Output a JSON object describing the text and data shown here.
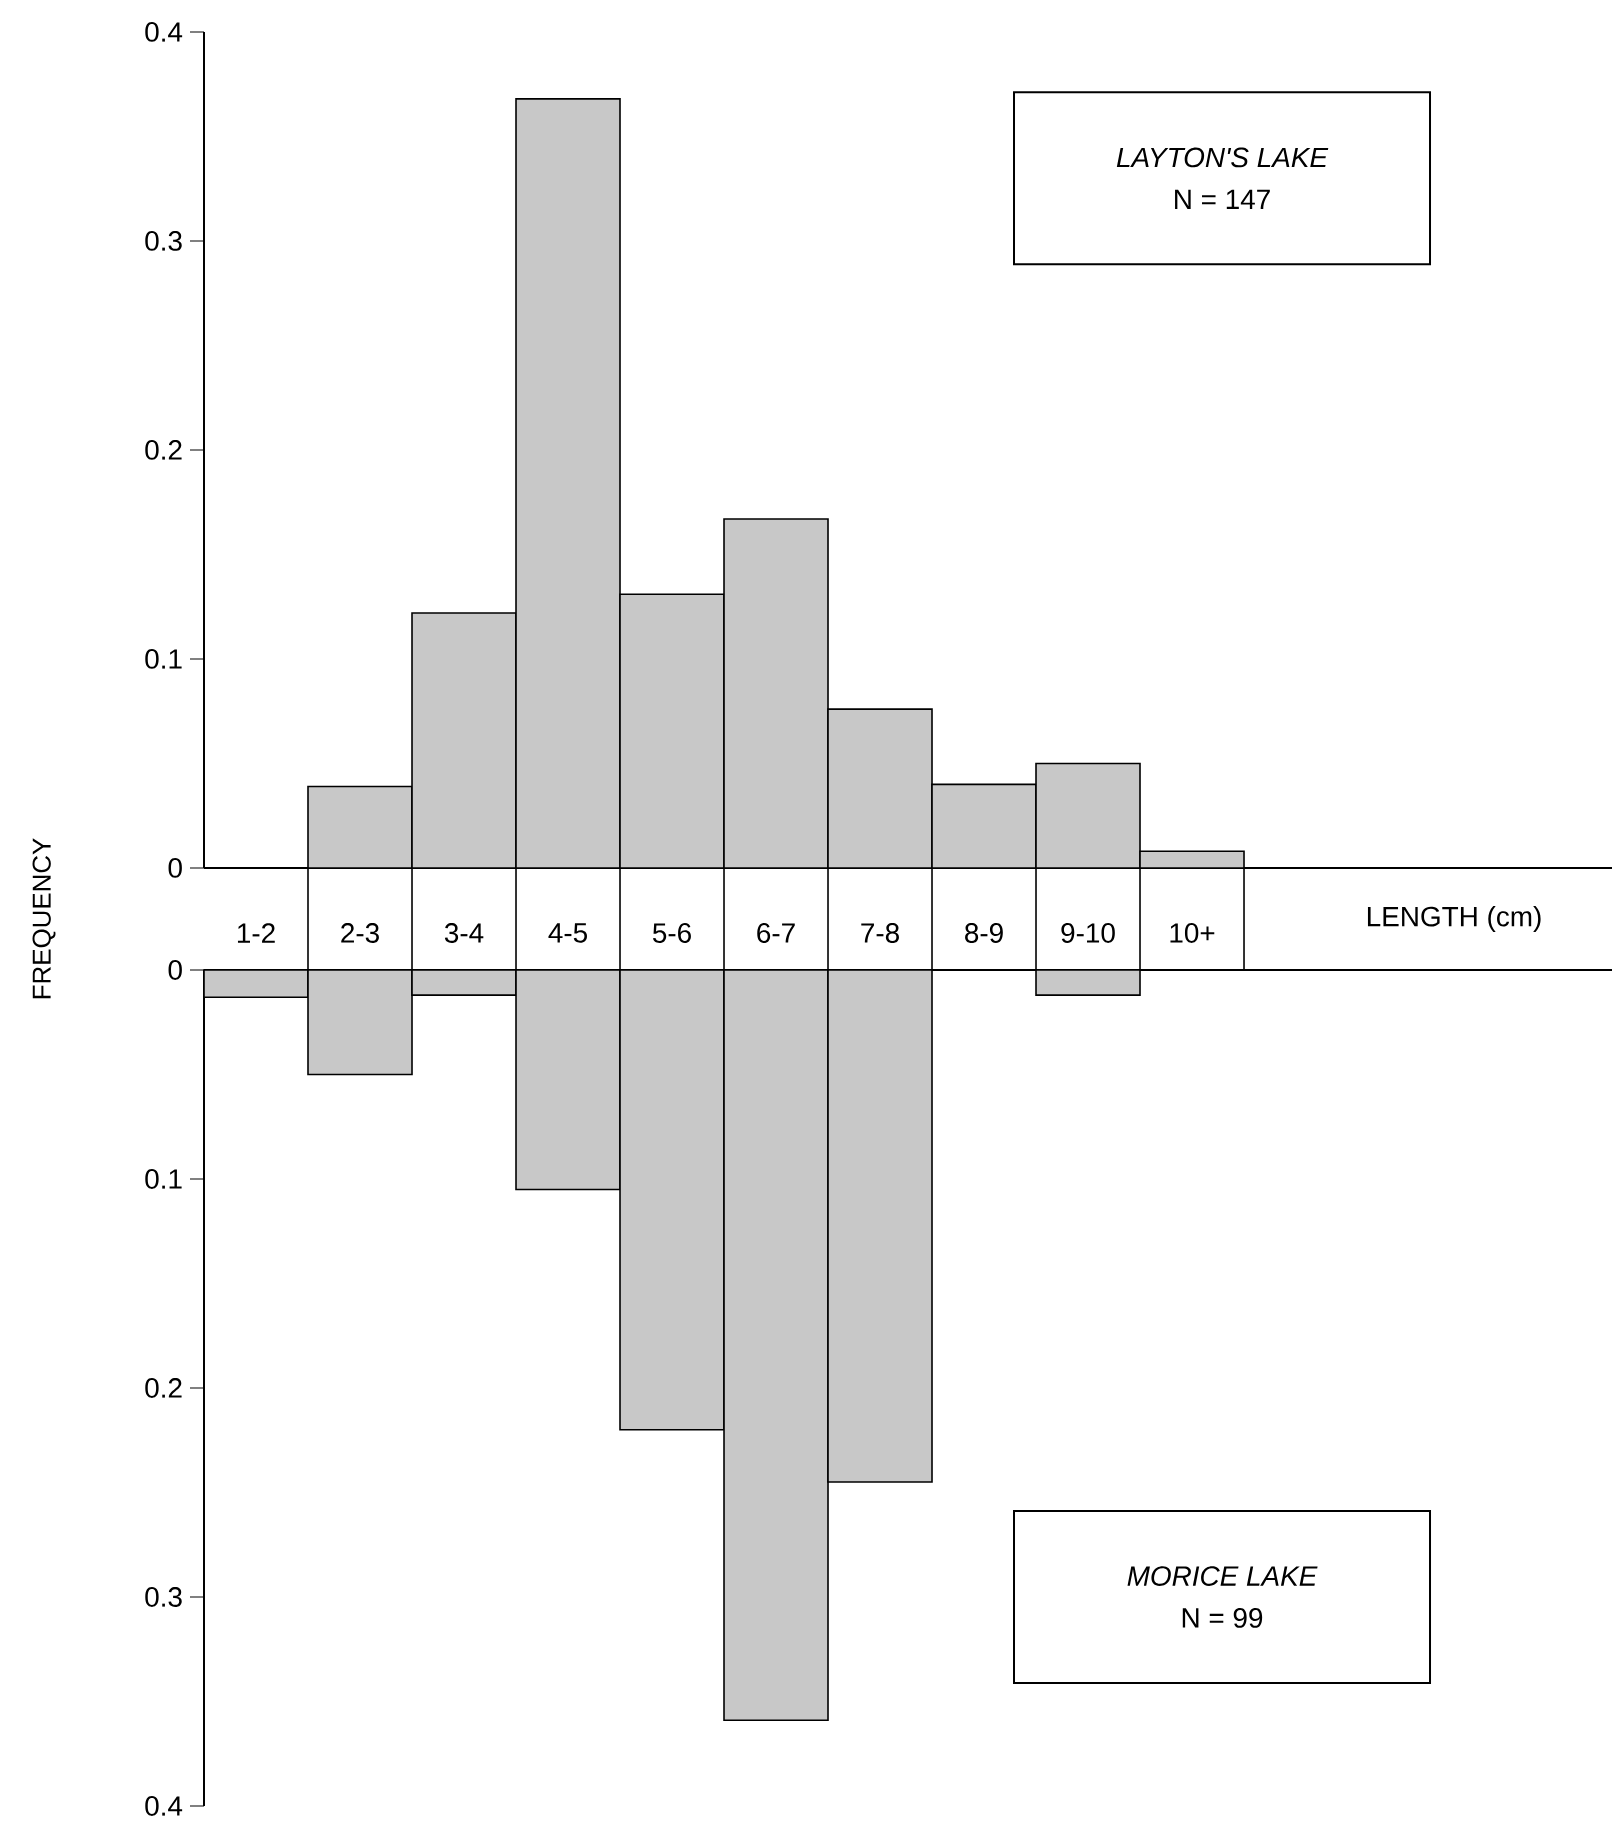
{
  "chart_data": [
    {
      "type": "bar",
      "title": "LAYTON'S LAKE",
      "subtitle": "N = 147",
      "xlabel": "LENGTH (cm)",
      "ylabel": "FREQUENCY",
      "categories": [
        "1-2",
        "2-3",
        "3-4",
        "4-5",
        "5-6",
        "6-7",
        "7-8",
        "8-9",
        "9-10",
        "10+"
      ],
      "values": [
        null,
        0.039,
        0.122,
        0.368,
        0.131,
        0.167,
        0.076,
        0.04,
        0.05,
        0.008
      ],
      "color": "#c8c8c8",
      "ylim": [
        0,
        0.4
      ],
      "yticks": [
        0,
        0.1,
        0.2,
        0.3,
        0.4
      ]
    },
    {
      "type": "bar",
      "title": "MORICE LAKE",
      "subtitle": "N = 99",
      "categories": [
        null,
        null,
        null,
        null,
        null,
        null,
        null,
        null,
        null,
        null
      ],
      "values": [
        0.013,
        0.05,
        0.012,
        0.105,
        0.22,
        0.359,
        0.245,
        null,
        0.012,
        null
      ],
      "color": "#c8c8c8",
      "ylim": [
        0.4,
        0
      ],
      "yticks": [
        0,
        0.1,
        0.2,
        0.3,
        0.4
      ],
      "tick_labels": "y"
    }
  ]
}
